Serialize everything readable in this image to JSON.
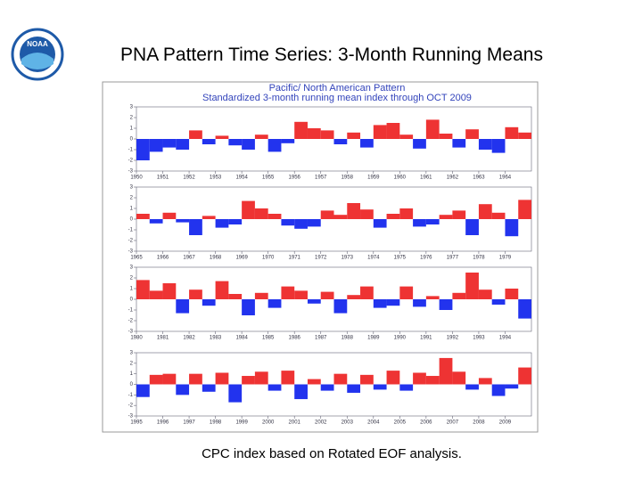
{
  "header": {
    "title": "PNA Pattern Time Series: 3-Month Running Means",
    "logo": "NOAA"
  },
  "footer": {
    "caption": "CPC index based on Rotated EOF analysis."
  },
  "chart_data": [
    {
      "type": "area",
      "title": "Pacific/ North American Pattern",
      "subtitle": "Standardized 3-month running mean index through OCT 2009",
      "positive_color": "#ee3333",
      "negative_color": "#2233ee",
      "xlim": [
        1950,
        1965
      ],
      "xticks": [
        1950,
        1951,
        1952,
        1953,
        1954,
        1955,
        1956,
        1957,
        1958,
        1959,
        1960,
        1961,
        1962,
        1963,
        1964
      ],
      "ylim": [
        -3,
        3
      ],
      "yticks": [
        -3,
        -2,
        -1,
        0,
        1,
        2,
        3
      ],
      "x": [
        1950,
        1950.5,
        1951,
        1951.5,
        1952,
        1952.5,
        1953,
        1953.5,
        1954,
        1954.5,
        1955,
        1955.5,
        1956,
        1956.5,
        1957,
        1957.5,
        1958,
        1958.5,
        1959,
        1959.5,
        1960,
        1960.5,
        1961,
        1961.5,
        1962,
        1962.5,
        1963,
        1963.5,
        1964,
        1964.5
      ],
      "values": [
        -2,
        -1.2,
        -0.8,
        -1,
        0.8,
        -0.5,
        0.3,
        -0.6,
        -1,
        0.4,
        -1.2,
        -0.4,
        1.6,
        1.0,
        0.8,
        -0.5,
        0.6,
        -0.8,
        1.3,
        1.5,
        0.4,
        -0.9,
        1.8,
        0.5,
        -0.8,
        0.9,
        -1.0,
        -1.3,
        1.1,
        0.6
      ]
    },
    {
      "type": "area",
      "positive_color": "#ee3333",
      "negative_color": "#2233ee",
      "xlim": [
        1965,
        1980
      ],
      "xticks": [
        1965,
        1966,
        1967,
        1968,
        1969,
        1970,
        1971,
        1972,
        1973,
        1974,
        1975,
        1976,
        1977,
        1978,
        1979
      ],
      "ylim": [
        -3,
        3
      ],
      "yticks": [
        -3,
        -2,
        -1,
        0,
        1,
        2,
        3
      ],
      "x": [
        1965,
        1965.5,
        1966,
        1966.5,
        1967,
        1967.5,
        1968,
        1968.5,
        1969,
        1969.5,
        1970,
        1970.5,
        1971,
        1971.5,
        1972,
        1972.5,
        1973,
        1973.5,
        1974,
        1974.5,
        1975,
        1975.5,
        1976,
        1976.5,
        1977,
        1977.5,
        1978,
        1978.5,
        1979,
        1979.5
      ],
      "values": [
        0.5,
        -0.4,
        0.6,
        -0.3,
        -1.5,
        0.3,
        -0.8,
        -0.5,
        1.7,
        1.0,
        0.5,
        -0.6,
        -0.9,
        -0.7,
        0.8,
        0.4,
        1.5,
        0.9,
        -0.8,
        0.5,
        1.0,
        -0.7,
        -0.5,
        0.4,
        0.8,
        -1.5,
        1.4,
        0.6,
        -1.6,
        1.8
      ]
    },
    {
      "type": "area",
      "positive_color": "#ee3333",
      "negative_color": "#2233ee",
      "xlim": [
        1980,
        1995
      ],
      "xticks": [
        1980,
        1981,
        1982,
        1983,
        1984,
        1985,
        1986,
        1987,
        1988,
        1989,
        1990,
        1991,
        1992,
        1993,
        1994
      ],
      "ylim": [
        -3,
        3
      ],
      "yticks": [
        -3,
        -2,
        -1,
        0,
        1,
        2,
        3
      ],
      "x": [
        1980,
        1980.5,
        1981,
        1981.5,
        1982,
        1982.5,
        1983,
        1983.5,
        1984,
        1984.5,
        1985,
        1985.5,
        1986,
        1986.5,
        1987,
        1987.5,
        1988,
        1988.5,
        1989,
        1989.5,
        1990,
        1990.5,
        1991,
        1991.5,
        1992,
        1992.5,
        1993,
        1993.5,
        1994,
        1994.5
      ],
      "values": [
        1.8,
        0.8,
        1.5,
        -1.3,
        0.9,
        -0.6,
        1.7,
        0.5,
        -1.5,
        0.6,
        -0.8,
        1.2,
        0.8,
        -0.4,
        0.7,
        -1.3,
        0.4,
        1.2,
        -0.8,
        -0.6,
        1.2,
        -0.7,
        0.3,
        -1.0,
        0.6,
        2.5,
        0.9,
        -0.5,
        1.0,
        -1.8
      ]
    },
    {
      "type": "area",
      "positive_color": "#ee3333",
      "negative_color": "#2233ee",
      "xlim": [
        1995,
        2010
      ],
      "xticks": [
        1995,
        1996,
        1997,
        1998,
        1999,
        2000,
        2001,
        2002,
        2003,
        2004,
        2005,
        2006,
        2007,
        2008,
        2009
      ],
      "ylim": [
        -3,
        3
      ],
      "yticks": [
        -3,
        -2,
        -1,
        0,
        1,
        2,
        3
      ],
      "x": [
        1995,
        1995.5,
        1996,
        1996.5,
        1997,
        1997.5,
        1998,
        1998.5,
        1999,
        1999.5,
        2000,
        2000.5,
        2001,
        2001.5,
        2002,
        2002.5,
        2003,
        2003.5,
        2004,
        2004.5,
        2005,
        2005.5,
        2006,
        2006.5,
        2007,
        2007.5,
        2008,
        2008.5,
        2009,
        2009.5
      ],
      "values": [
        -1.2,
        0.9,
        1.0,
        -1.0,
        1.0,
        -0.7,
        1.1,
        -1.7,
        0.8,
        1.2,
        -0.6,
        1.3,
        -1.4,
        0.5,
        -0.6,
        1.0,
        -0.8,
        0.9,
        -0.5,
        1.3,
        -0.6,
        1.1,
        0.8,
        2.5,
        1.2,
        -0.5,
        0.6,
        -1.1,
        -0.4,
        1.6
      ]
    }
  ]
}
